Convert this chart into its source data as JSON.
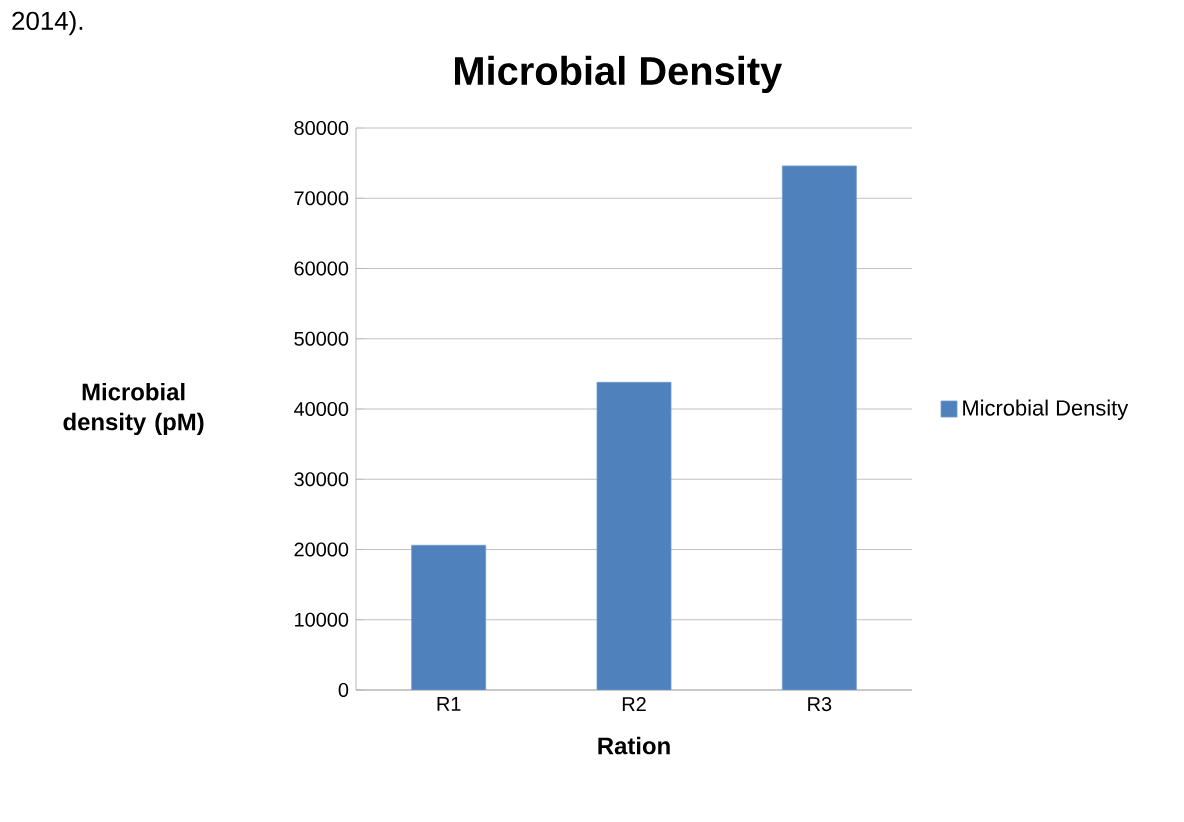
{
  "chart_data": {
    "type": "bar",
    "title": "Microbial Density",
    "xlabel": "Ration",
    "ylabel": "Microbial density (pM)",
    "categories": [
      "R1",
      "R2",
      "R3"
    ],
    "series": [
      {
        "name": "Microbial Density",
        "color": "#4f81bd",
        "values": [
          20600,
          43800,
          74600
        ]
      }
    ],
    "ylim": [
      0,
      80000
    ],
    "yticks": [
      0,
      10000,
      20000,
      30000,
      40000,
      50000,
      60000,
      70000,
      80000
    ],
    "grid": "y",
    "legend": "right",
    "annotations": [
      "2014)."
    ]
  }
}
